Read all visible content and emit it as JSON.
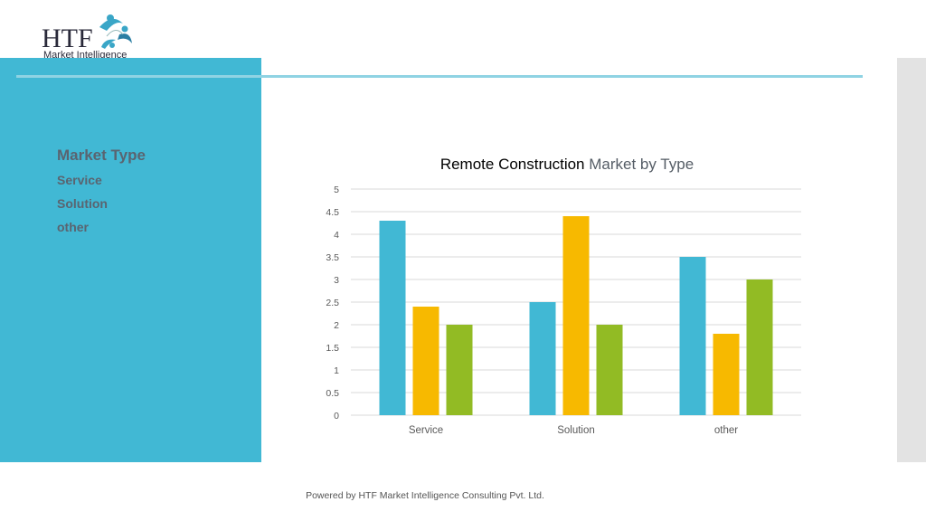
{
  "logo": {
    "letters": "HTF",
    "tagline": "Market Intelligence"
  },
  "panel": {
    "heading": "Market Type",
    "items": [
      "Service",
      "Solution",
      "other"
    ]
  },
  "chart_data": {
    "type": "bar",
    "title": "Remote Construction",
    "subtitle": "Market by Type",
    "categories": [
      "Service",
      "Solution",
      "other"
    ],
    "series": [
      {
        "values": [
          4.3,
          2.5,
          3.5
        ],
        "color": "#41b8d4"
      },
      {
        "values": [
          2.4,
          4.4,
          1.8
        ],
        "color": "#f7b900"
      },
      {
        "values": [
          2.0,
          2.0,
          3.0
        ],
        "color": "#92bb24"
      }
    ],
    "ylim": [
      0,
      5
    ],
    "yticks": [
      "0",
      "0.5",
      "1",
      "1.5",
      "2",
      "2.5",
      "3",
      "3.5",
      "4",
      "4.5",
      "5"
    ],
    "grid": true,
    "legend": "none"
  },
  "colors": {
    "panel": "#41b8d4",
    "rule": "#8fd3e3",
    "strip": "#e3e3e3"
  },
  "footer": "Powered by HTF Market Intelligence Consulting Pvt. Ltd."
}
